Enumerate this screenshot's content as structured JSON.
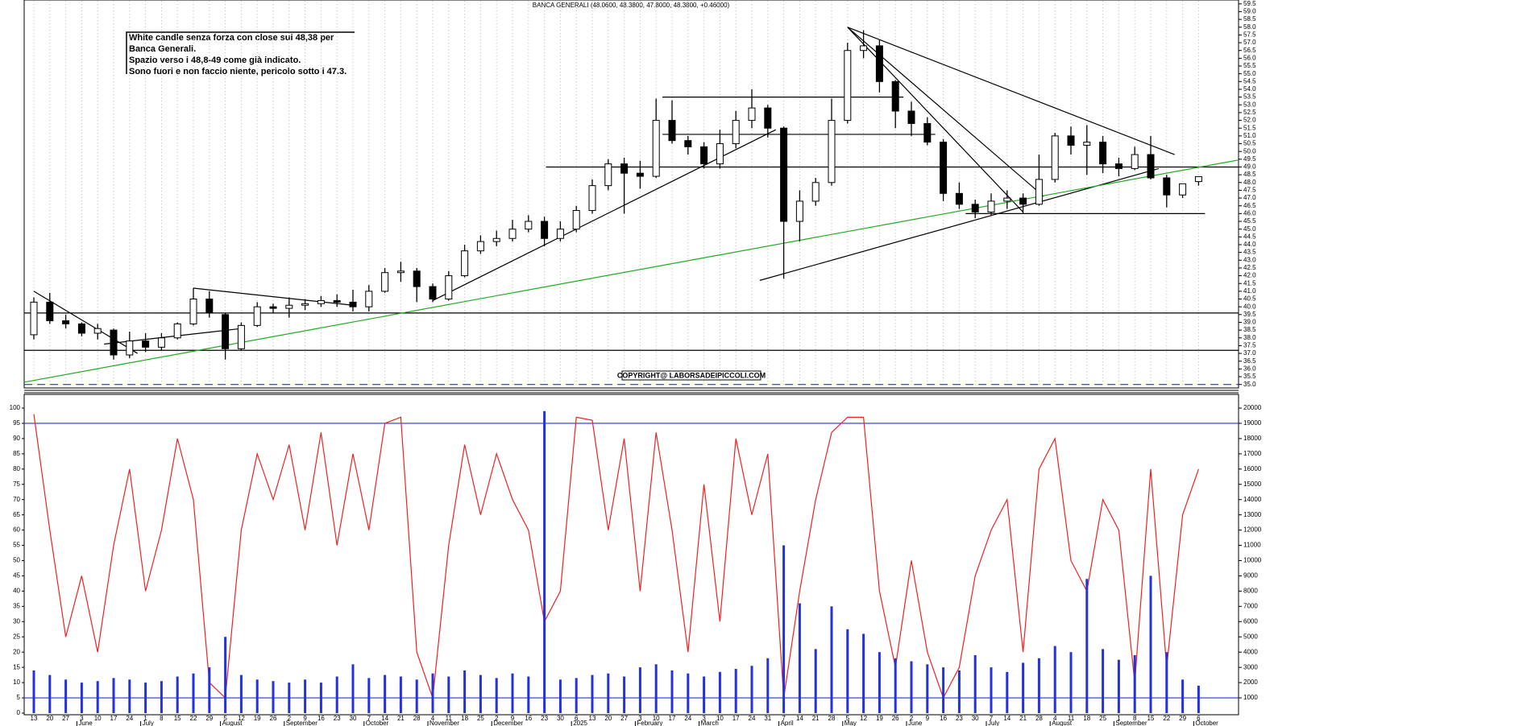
{
  "chart_data": [
    {
      "type": "candlestick",
      "title": "BANCA GENERALI (48.0600, 48.3800, 47.8000, 48.3800, +0.46000)",
      "annotation": [
        "White candle senza forza con close sui 48,38 per",
        "Banca Generali.",
        "Spazio verso i 48,8-49 come già indicato.",
        "Sono fuori e non faccio niente, pericolo sotto i 47.3."
      ],
      "watermark": "COPYRIGHT@ LABORSADEIPICCOLI.COM",
      "categories": [
        "13",
        "20",
        "27",
        "3",
        "10",
        "17",
        "24",
        "1",
        "8",
        "15",
        "22",
        "29",
        "5",
        "12",
        "19",
        "26",
        "2",
        "9",
        "16",
        "23",
        "30",
        "7",
        "14",
        "21",
        "28",
        "4",
        "11",
        "18",
        "25",
        "2",
        "9",
        "16",
        "23",
        "30",
        "6",
        "13",
        "20",
        "27",
        "3",
        "10",
        "17",
        "24",
        "3",
        "10",
        "17",
        "24",
        "31",
        "7",
        "14",
        "21",
        "28",
        "5",
        "12",
        "19",
        "26",
        "2",
        "9",
        "16",
        "23",
        "30",
        "7",
        "14",
        "21",
        "28",
        "4",
        "11",
        "18",
        "25",
        "1",
        "8",
        "15",
        "22",
        "29",
        "6"
      ],
      "month_labels": [
        {
          "value": 3,
          "label": "June"
        },
        {
          "value": 7,
          "label": "July"
        },
        {
          "value": 12,
          "label": "August"
        },
        {
          "value": 16,
          "label": "September"
        },
        {
          "value": 21,
          "label": "October"
        },
        {
          "value": 25,
          "label": "November"
        },
        {
          "value": 29,
          "label": "December"
        },
        {
          "value": 34,
          "label": "2025"
        },
        {
          "value": 38,
          "label": "February"
        },
        {
          "value": 42,
          "label": "March"
        },
        {
          "value": 47,
          "label": "April"
        },
        {
          "value": 51,
          "label": "May"
        },
        {
          "value": 55,
          "label": "June"
        },
        {
          "value": 60,
          "label": "July"
        },
        {
          "value": 64,
          "label": "August"
        },
        {
          "value": 68,
          "label": "September"
        },
        {
          "value": 73,
          "label": "October"
        }
      ],
      "open": [
        38.2,
        40.3,
        39.1,
        38.9,
        38.3,
        38.5,
        36.9,
        37.8,
        37.4,
        38.0,
        38.9,
        40.5,
        39.5,
        37.3,
        38.8,
        40.0,
        39.9,
        40.1,
        40.2,
        40.4,
        40.3,
        40.0,
        41.0,
        42.2,
        42.3,
        41.3,
        40.5,
        42.0,
        43.6,
        44.2,
        44.4,
        45.0,
        45.5,
        44.4,
        45.0,
        46.2,
        47.8,
        49.2,
        48.6,
        48.4,
        52.0,
        50.7,
        50.3,
        49.2,
        50.5,
        52.0,
        52.8,
        51.5,
        45.5,
        46.8,
        48.0,
        52.0,
        56.5,
        56.8,
        54.5,
        52.6,
        51.8,
        50.6,
        47.3,
        46.6,
        46.1,
        46.8,
        47.0,
        46.6,
        48.2,
        51.0,
        50.4,
        50.6,
        49.2,
        48.9,
        49.8,
        48.3,
        47.2,
        48.06
      ],
      "high": [
        40.6,
        40.9,
        39.5,
        39.0,
        38.9,
        38.6,
        38.4,
        38.3,
        38.3,
        39.0,
        41.2,
        41.0,
        39.6,
        39.0,
        40.3,
        40.2,
        40.6,
        40.5,
        40.7,
        40.8,
        41.1,
        41.4,
        42.5,
        42.9,
        42.5,
        41.5,
        42.3,
        44.0,
        44.6,
        44.9,
        45.6,
        45.9,
        45.8,
        45.5,
        46.5,
        48.2,
        49.5,
        49.6,
        49.4,
        53.4,
        53.3,
        51.0,
        50.6,
        51.4,
        52.6,
        54.0,
        53.0,
        51.6,
        47.5,
        48.3,
        53.4,
        57.0,
        57.8,
        57.2,
        54.6,
        53.2,
        52.2,
        50.8,
        48.0,
        46.9,
        47.3,
        47.5,
        47.3,
        49.8,
        51.2,
        51.6,
        51.7,
        51.0,
        49.6,
        50.3,
        51.0,
        48.5,
        47.8,
        48.38
      ],
      "low": [
        37.9,
        38.9,
        38.6,
        38.1,
        37.9,
        36.6,
        36.7,
        37.1,
        37.2,
        37.9,
        38.8,
        39.3,
        36.6,
        37.2,
        38.7,
        39.6,
        39.3,
        39.8,
        40.0,
        40.0,
        39.7,
        39.7,
        40.9,
        41.6,
        40.3,
        40.3,
        40.4,
        41.9,
        43.4,
        43.9,
        44.2,
        44.8,
        43.9,
        44.2,
        44.8,
        46.0,
        47.5,
        46.0,
        47.6,
        48.3,
        50.5,
        49.8,
        48.9,
        48.9,
        50.2,
        51.5,
        50.9,
        41.8,
        44.2,
        46.5,
        47.8,
        51.8,
        56.0,
        53.8,
        51.5,
        51.0,
        50.4,
        46.8,
        46.3,
        45.7,
        45.9,
        46.3,
        46.0,
        46.5,
        48.0,
        49.8,
        48.5,
        48.6,
        48.4,
        48.8,
        48.2,
        46.4,
        47.0,
        47.8
      ],
      "close": [
        40.3,
        39.1,
        38.9,
        38.3,
        38.6,
        36.9,
        37.8,
        37.4,
        38.0,
        38.9,
        40.5,
        39.6,
        37.3,
        38.8,
        40.0,
        39.9,
        40.1,
        40.2,
        40.4,
        40.3,
        40.0,
        41.0,
        42.2,
        42.3,
        41.3,
        40.5,
        42.0,
        43.6,
        44.2,
        44.4,
        45.0,
        45.5,
        44.4,
        45.0,
        46.2,
        47.8,
        49.2,
        48.6,
        48.4,
        52.0,
        50.7,
        50.3,
        49.2,
        50.5,
        52.0,
        52.8,
        51.5,
        45.5,
        46.8,
        48.0,
        52.0,
        56.5,
        56.8,
        54.5,
        52.6,
        51.8,
        50.6,
        47.3,
        46.6,
        46.1,
        46.8,
        47.0,
        46.6,
        48.2,
        51.0,
        50.4,
        50.6,
        49.2,
        48.9,
        49.8,
        48.3,
        47.2,
        47.92,
        48.38
      ],
      "color": "#000000",
      "grid": true,
      "ylim": [
        34.75,
        59.75
      ],
      "yticks": [
        {
          "value": 35,
          "label": "35.0"
        },
        35.5,
        {
          "value": 36,
          "label": "36.0"
        },
        36.5,
        {
          "value": 37,
          "label": "37.0"
        },
        37.5,
        {
          "value": 38,
          "label": "38.0"
        },
        38.5,
        {
          "value": 39,
          "label": "39.0"
        },
        39.5,
        {
          "value": 40,
          "label": "40.0"
        },
        40.5,
        {
          "value": 41,
          "label": "41.0"
        },
        41.5,
        {
          "value": 42,
          "label": "42.0"
        },
        42.5,
        {
          "value": 43,
          "label": "43.0"
        },
        43.5,
        {
          "value": 44,
          "label": "44.0"
        },
        44.5,
        {
          "value": 45,
          "label": "45.0"
        },
        45.5,
        {
          "value": 46,
          "label": "46.0"
        },
        46.5,
        {
          "value": 47,
          "label": "47.0"
        },
        47.5,
        {
          "value": 48,
          "label": "48.0"
        },
        48.5,
        {
          "value": 49,
          "label": "49.0"
        },
        49.5,
        {
          "value": 50,
          "label": "50.0"
        },
        50.5,
        {
          "value": 51,
          "label": "51.0"
        },
        51.5,
        {
          "value": 52,
          "label": "52.0"
        },
        52.5,
        {
          "value": 53,
          "label": "53.0"
        },
        53.5,
        {
          "value": 54,
          "label": "54.0"
        },
        54.5,
        {
          "value": 55,
          "label": "55.0"
        },
        55.5,
        {
          "value": 56,
          "label": "56.0"
        },
        56.5,
        {
          "value": 57,
          "label": "57.0"
        },
        57.5,
        {
          "value": 58,
          "label": "58.0"
        },
        58.5,
        {
          "value": 59,
          "label": "59.0"
        },
        59.5
      ],
      "lines": [
        {
          "x": [
            0,
            6.5
          ],
          "y": [
            41.0,
            37.0
          ],
          "color": "#000000"
        },
        {
          "x": [
            4.4,
            13
          ],
          "y": [
            37.6,
            38.6
          ],
          "color": "#000000"
        },
        {
          "x": [
            10,
            20
          ],
          "y": [
            41.2,
            40.1
          ],
          "color": "#000000"
        },
        {
          "x": [
            25,
            46.5
          ],
          "y": [
            40.4,
            51.4
          ],
          "color": "#000000"
        },
        {
          "x": [
            45.5,
            70.5
          ],
          "y": [
            41.7,
            48.9
          ],
          "color": "#000000"
        },
        {
          "x": [
            51,
            62
          ],
          "y": [
            58.0,
            46.1
          ],
          "color": "#000000"
        },
        {
          "x": [
            51,
            63.3
          ],
          "y": [
            58.0,
            47.1
          ],
          "color": "#000000"
        },
        {
          "x": [
            51,
            71.5
          ],
          "y": [
            58.0,
            49.8
          ],
          "color": "#000000"
        },
        {
          "x": [
            32.1,
            75.5
          ],
          "y": [
            49.0,
            49.0
          ],
          "color": "#000000"
        },
        {
          "x": [
            -0.6,
            75.5
          ],
          "y": [
            39.6,
            39.6
          ],
          "color": "#000000"
        },
        {
          "x": [
            -0.6,
            75.5
          ],
          "y": [
            37.2,
            37.2
          ],
          "color": "#000000"
        },
        {
          "x": [
            39.4,
            54.5
          ],
          "y": [
            53.5,
            53.5
          ],
          "color": "#000000"
        },
        {
          "x": [
            39.4,
            56.5
          ],
          "y": [
            51.1,
            51.1
          ],
          "color": "#000000"
        },
        {
          "x": [
            58.4,
            73.4
          ],
          "y": [
            46.0,
            46.0
          ],
          "color": "#000000"
        },
        {
          "x": [
            -0.6,
            75.5
          ],
          "y": [
            35.15,
            49.45
          ],
          "color": "#22aa22"
        },
        {
          "x": [
            -0.6,
            75.5
          ],
          "y": [
            35.0,
            35.0
          ],
          "color": "#2233cc",
          "dash": true
        }
      ]
    },
    {
      "type": "line-bar",
      "series": [
        {
          "color": "#ee2222",
          "values": [
            98,
            60,
            25,
            45,
            20,
            55,
            80,
            40,
            60,
            90,
            70,
            10,
            5,
            60,
            85,
            70,
            88,
            60,
            92,
            55,
            85,
            60,
            95,
            97,
            20,
            5,
            55,
            88,
            65,
            85,
            70,
            60,
            30,
            40,
            97,
            96,
            60,
            90,
            40,
            92,
            60,
            20,
            75,
            30,
            90,
            65,
            85,
            5,
            40,
            70,
            92,
            97,
            97,
            40,
            15,
            50,
            20,
            5,
            15,
            45,
            60,
            70,
            20,
            80,
            90,
            50,
            40,
            70,
            60,
            10,
            80,
            15,
            65,
            80
          ]
        },
        {
          "color": "#2233dd",
          "axis": "y2",
          "values": [
            2800,
            2500,
            2200,
            2000,
            2100,
            2300,
            2200,
            2000,
            2100,
            2400,
            2600,
            3000,
            5000,
            2500,
            2200,
            2100,
            2000,
            2200,
            2000,
            2400,
            3200,
            2300,
            2500,
            2400,
            2200,
            2600,
            2400,
            2800,
            2500,
            2300,
            2600,
            2400,
            19800,
            2200,
            2300,
            2500,
            2600,
            2400,
            3000,
            3200,
            2800,
            2600,
            2400,
            2700,
            2900,
            3100,
            3600,
            11000,
            7200,
            4200,
            7000,
            5500,
            5200,
            4000,
            3600,
            3400,
            3200,
            3000,
            2800,
            3800,
            3000,
            2700,
            3300,
            3600,
            4400,
            4000,
            8800,
            4200,
            3500,
            3800,
            9000,
            4000,
            2200,
            1800
          ]
        }
      ],
      "reference_lines": [
        5,
        95
      ],
      "reference_color": "#2233dd",
      "ylim": [
        0,
        100
      ],
      "yticks": [
        0,
        5,
        10,
        15,
        20,
        25,
        30,
        35,
        40,
        45,
        50,
        55,
        60,
        65,
        70,
        75,
        80,
        85,
        90,
        95,
        100
      ],
      "y2lim": [
        0,
        20000
      ],
      "y2ticks": [
        1000,
        2000,
        3000,
        4000,
        5000,
        6000,
        7000,
        8000,
        9000,
        10000,
        11000,
        12000,
        13000,
        14000,
        15000,
        16000,
        17000,
        18000,
        19000,
        20000
      ]
    }
  ]
}
